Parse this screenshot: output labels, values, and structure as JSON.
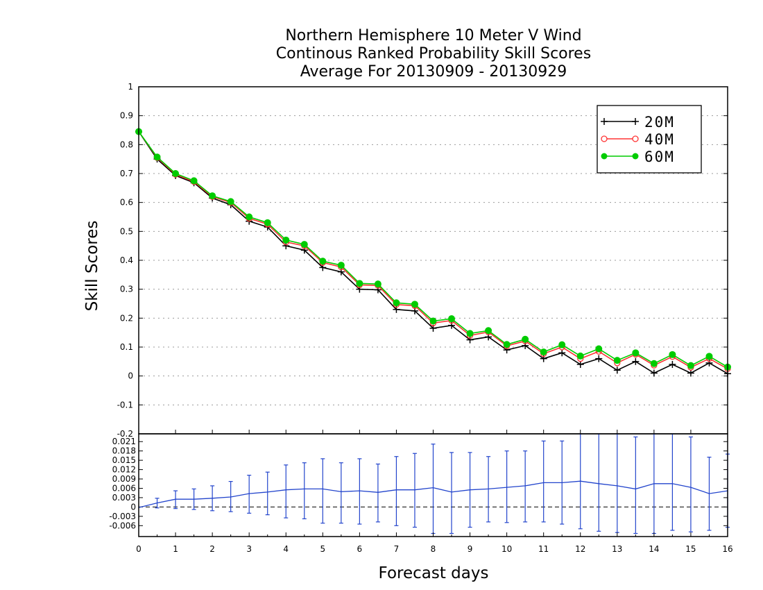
{
  "chart_data": [
    {
      "type": "line",
      "title": [
        "Northern Hemisphere 10 Meter V Wind",
        "Continous Ranked Probability Skill Scores",
        "Average For 20130909 - 20130929"
      ],
      "xlabel": "Forecast days",
      "ylabel": "Skill Scores",
      "xlim": [
        0,
        16
      ],
      "ylim": [
        -0.2,
        1
      ],
      "x_ticks": [
        "0",
        "1",
        "2",
        "3",
        "4",
        "5",
        "6",
        "7",
        "8",
        "9",
        "10",
        "11",
        "12",
        "13",
        "14",
        "15",
        "16"
      ],
      "y_ticks": [
        "1",
        "0.9",
        "0.8",
        "0.7",
        "0.6",
        "0.5",
        "0.4",
        "0.3",
        "0.2",
        "0.1",
        "0",
        "-0.1",
        "-0.2"
      ],
      "grid": "horizontal-dotted",
      "legend_position": "top-right",
      "x": [
        0,
        0.5,
        1,
        1.5,
        2,
        2.5,
        3,
        3.5,
        4,
        4.5,
        5,
        5.5,
        6,
        6.5,
        7,
        7.5,
        8,
        8.5,
        9,
        9.5,
        10,
        10.5,
        11,
        11.5,
        12,
        12.5,
        13,
        13.5,
        14,
        14.5,
        15,
        15.5,
        16
      ],
      "series": [
        {
          "name": "20M",
          "color": "#000000",
          "marker": "plus",
          "values": [
            0.845,
            0.75,
            0.693,
            0.668,
            0.615,
            0.592,
            0.535,
            0.515,
            0.45,
            0.435,
            0.375,
            0.36,
            0.3,
            0.298,
            0.23,
            0.225,
            0.165,
            0.175,
            0.125,
            0.135,
            0.09,
            0.105,
            0.06,
            0.08,
            0.04,
            0.06,
            0.02,
            0.05,
            0.01,
            0.04,
            0.01,
            0.045,
            0.008
          ]
        },
        {
          "name": "40M",
          "color": "#ff3333",
          "marker": "open-circle",
          "values": [
            0.845,
            0.755,
            0.697,
            0.672,
            0.62,
            0.6,
            0.545,
            0.525,
            0.463,
            0.45,
            0.392,
            0.377,
            0.315,
            0.313,
            0.247,
            0.243,
            0.183,
            0.192,
            0.14,
            0.152,
            0.104,
            0.121,
            0.077,
            0.1,
            0.06,
            0.085,
            0.045,
            0.075,
            0.037,
            0.067,
            0.03,
            0.06,
            0.025
          ]
        },
        {
          "name": "60M",
          "color": "#00cc00",
          "marker": "filled-circle",
          "values": [
            0.845,
            0.757,
            0.7,
            0.675,
            0.623,
            0.603,
            0.55,
            0.53,
            0.47,
            0.455,
            0.397,
            0.383,
            0.32,
            0.318,
            0.253,
            0.248,
            0.19,
            0.198,
            0.147,
            0.157,
            0.109,
            0.127,
            0.083,
            0.108,
            0.069,
            0.094,
            0.054,
            0.08,
            0.043,
            0.074,
            0.036,
            0.068,
            0.031
          ]
        }
      ]
    },
    {
      "type": "line",
      "title": "",
      "xlabel": "Forecast days",
      "ylabel": "",
      "xlim": [
        0,
        16
      ],
      "ylim": [
        -0.0095,
        0.0235
      ],
      "y_ticks": [
        "0.021",
        "0.018",
        "0.015",
        "0.012",
        "0.009",
        "0.006",
        "0.003",
        "0",
        "-0.003",
        "-0.006"
      ],
      "zero_line": "dashed",
      "color": "#2244cc",
      "x": [
        0,
        0.5,
        1,
        1.5,
        2,
        2.5,
        3,
        3.5,
        4,
        4.5,
        5,
        5.5,
        6,
        6.5,
        7,
        7.5,
        8,
        8.5,
        9,
        9.5,
        10,
        10.5,
        11,
        11.5,
        12,
        12.5,
        13,
        13.5,
        14,
        14.5,
        15,
        15.5,
        16
      ],
      "values": [
        -0.0002,
        0.0013,
        0.0025,
        0.0025,
        0.0028,
        0.0032,
        0.0043,
        0.0048,
        0.0055,
        0.0058,
        0.0058,
        0.0049,
        0.0052,
        0.0047,
        0.0055,
        0.0055,
        0.0062,
        0.0048,
        0.0055,
        0.0058,
        0.0063,
        0.0068,
        0.0078,
        0.0078,
        0.0083,
        0.0075,
        0.0068,
        0.0058,
        0.0075,
        0.0075,
        0.0063,
        0.0043,
        0.0052
      ],
      "error_bar_upper": [
        null,
        0.0028,
        0.0052,
        0.0058,
        0.0068,
        0.0082,
        0.0102,
        0.0112,
        0.0135,
        0.0142,
        0.0155,
        0.0142,
        0.0155,
        0.0138,
        0.0162,
        0.0172,
        0.0202,
        0.0175,
        0.0175,
        0.0162,
        0.018,
        0.018,
        0.0212,
        0.0212,
        0.0235,
        0.0235,
        0.0235,
        0.0225,
        0.0235,
        0.0235,
        0.0225,
        0.016,
        0.017
      ],
      "error_bar_lower": [
        null,
        -0.0003,
        -0.0005,
        -0.0008,
        -0.0012,
        -0.0015,
        -0.002,
        -0.0025,
        -0.0035,
        -0.0038,
        -0.0052,
        -0.0052,
        -0.0055,
        -0.0048,
        -0.006,
        -0.0065,
        -0.0085,
        -0.0085,
        -0.0065,
        -0.0048,
        -0.005,
        -0.0048,
        -0.0048,
        -0.0055,
        -0.007,
        -0.0078,
        -0.0082,
        -0.0085,
        -0.0085,
        -0.0075,
        -0.008,
        -0.0075,
        -0.0065
      ],
      "x_ticks": [
        "0",
        "1",
        "2",
        "3",
        "4",
        "5",
        "6",
        "7",
        "8",
        "9",
        "10",
        "11",
        "12",
        "13",
        "14",
        "15",
        "16"
      ]
    }
  ]
}
